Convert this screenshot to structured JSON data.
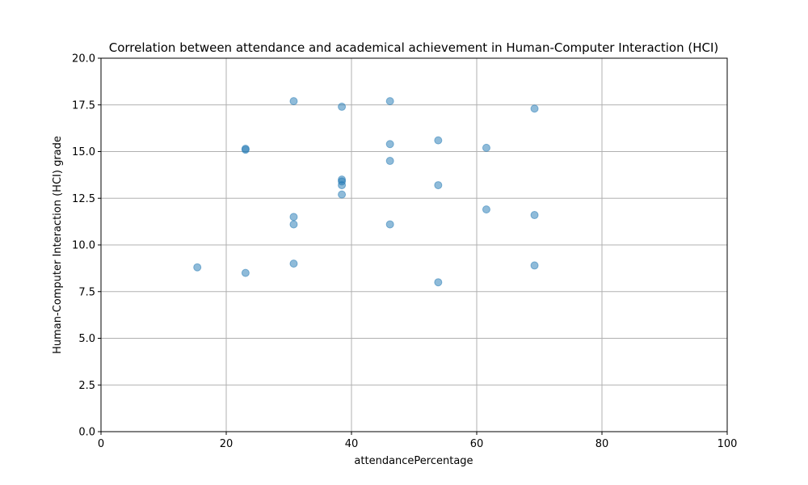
{
  "chart_data": {
    "type": "scatter",
    "title": "Correlation between attendance and academical achievement in Human-Computer Interaction (HCI)",
    "xlabel": "attendancePercentage",
    "ylabel": "Human-Computer Interaction (HCI) grade",
    "xlim": [
      0,
      100
    ],
    "ylim": [
      0,
      20
    ],
    "xticks": [
      "0",
      "20",
      "40",
      "60",
      "80",
      "100"
    ],
    "yticks": [
      "0.0",
      "2.5",
      "5.0",
      "7.5",
      "10.0",
      "12.5",
      "15.0",
      "17.5",
      "20.0"
    ],
    "grid": true,
    "marker_color": "#1f77b4",
    "marker_alpha": 0.5,
    "points": [
      {
        "x": 15.38,
        "y": 8.8
      },
      {
        "x": 23.08,
        "y": 15.1
      },
      {
        "x": 23.08,
        "y": 15.15
      },
      {
        "x": 23.08,
        "y": 8.5
      },
      {
        "x": 30.77,
        "y": 17.7
      },
      {
        "x": 30.77,
        "y": 11.5
      },
      {
        "x": 30.77,
        "y": 11.1
      },
      {
        "x": 30.77,
        "y": 9.0
      },
      {
        "x": 38.46,
        "y": 17.4
      },
      {
        "x": 38.46,
        "y": 13.5
      },
      {
        "x": 38.46,
        "y": 13.4
      },
      {
        "x": 38.46,
        "y": 13.2
      },
      {
        "x": 38.46,
        "y": 12.7
      },
      {
        "x": 46.15,
        "y": 17.7
      },
      {
        "x": 46.15,
        "y": 15.4
      },
      {
        "x": 46.15,
        "y": 14.5
      },
      {
        "x": 46.15,
        "y": 11.1
      },
      {
        "x": 53.85,
        "y": 15.6
      },
      {
        "x": 53.85,
        "y": 13.2
      },
      {
        "x": 53.85,
        "y": 8.0
      },
      {
        "x": 61.54,
        "y": 15.2
      },
      {
        "x": 61.54,
        "y": 11.9
      },
      {
        "x": 69.23,
        "y": 17.3
      },
      {
        "x": 69.23,
        "y": 11.6
      },
      {
        "x": 69.23,
        "y": 8.9
      }
    ]
  }
}
